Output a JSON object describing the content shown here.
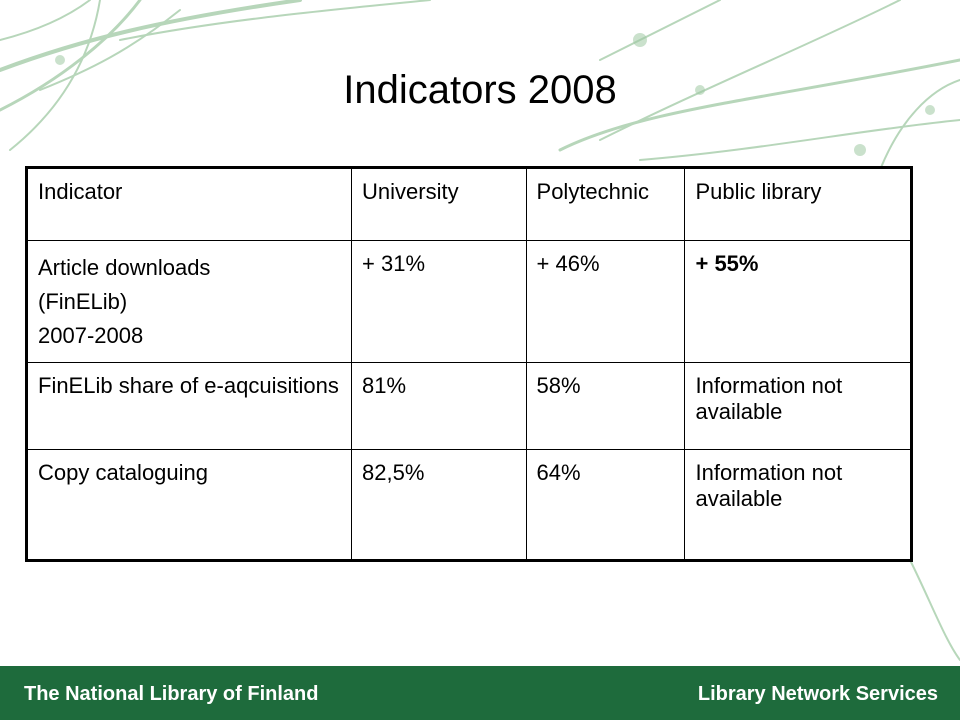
{
  "slide": {
    "title": "Indicators 2008"
  },
  "table": {
    "headers": [
      "Indicator",
      "University",
      "Polytechnic",
      "Public library"
    ],
    "rows": [
      {
        "indicator_lines": [
          "Article downloads",
          "(FinELib)",
          "2007-2008"
        ],
        "university": "+ 31%",
        "polytechnic": "+ 46%",
        "public_library": "+ 55%"
      },
      {
        "indicator": "FinELib share of e-aqcuisitions",
        "university": "81%",
        "polytechnic": "58%",
        "public_library": "Information not available"
      },
      {
        "indicator": "Copy cataloguing",
        "university": "82,5%",
        "polytechnic": "64%",
        "public_library": "Information not available"
      }
    ]
  },
  "footer": {
    "left": "The National Library of Finland",
    "right": "Library Network Services"
  },
  "colors": {
    "footer_bg": "#1e6b3c",
    "decoration": "#9fc9a3"
  }
}
